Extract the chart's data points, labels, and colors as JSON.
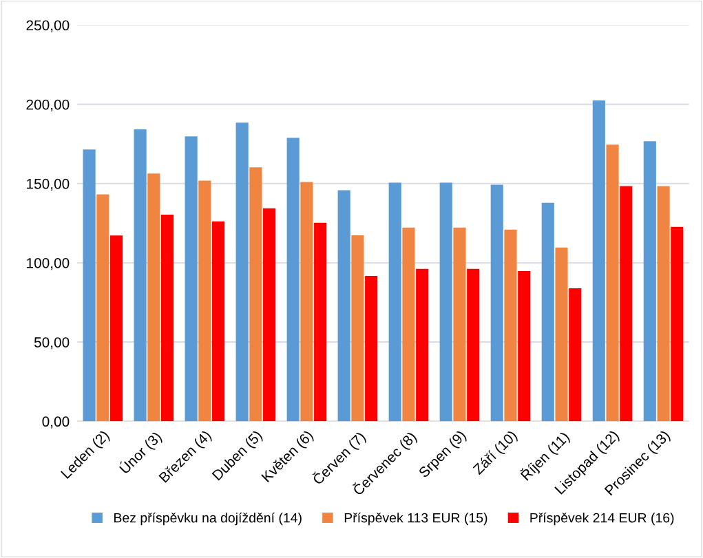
{
  "chart_data": {
    "type": "bar",
    "categories": [
      "Leden (2)",
      "Únor (3)",
      "Březen (4)",
      "Duben (5)",
      "Květen (6)",
      "Červen (7)",
      "Červenec (8)",
      "Srpen (9)",
      "Září (10)",
      "Říjen (11)",
      "Listopad (12)",
      "Prosinec (13)"
    ],
    "series": [
      {
        "name": "Bez příspěvku na dojíždění (14)",
        "color": "#5b9bd5",
        "values": [
          171.5,
          184.2,
          179.8,
          188.5,
          178.9,
          145.8,
          150.6,
          150.6,
          149.3,
          137.9,
          202.5,
          176.7
        ]
      },
      {
        "name": "Příspěvek 113 EUR (15)",
        "color": "#f08541",
        "values": [
          143.2,
          156.3,
          151.9,
          160.2,
          151.0,
          117.4,
          122.2,
          122.2,
          120.9,
          109.6,
          174.6,
          148.4
        ]
      },
      {
        "name": "Příspěvek 214 EUR (16)",
        "color": "#ff0000",
        "values": [
          117.2,
          130.4,
          126.2,
          134.4,
          125.3,
          91.7,
          96.2,
          96.2,
          94.8,
          83.9,
          148.4,
          122.7
        ]
      }
    ],
    "ylim": [
      0,
      250
    ],
    "yticks": [
      {
        "value": 0,
        "label": "0,00"
      },
      {
        "value": 50,
        "label": "50,00"
      },
      {
        "value": 100,
        "label": "100,00"
      },
      {
        "value": 150,
        "label": "150,00"
      },
      {
        "value": 200,
        "label": "200,00"
      },
      {
        "value": 250,
        "label": "250,00"
      }
    ],
    "grid": "y",
    "legend": "bottom"
  }
}
